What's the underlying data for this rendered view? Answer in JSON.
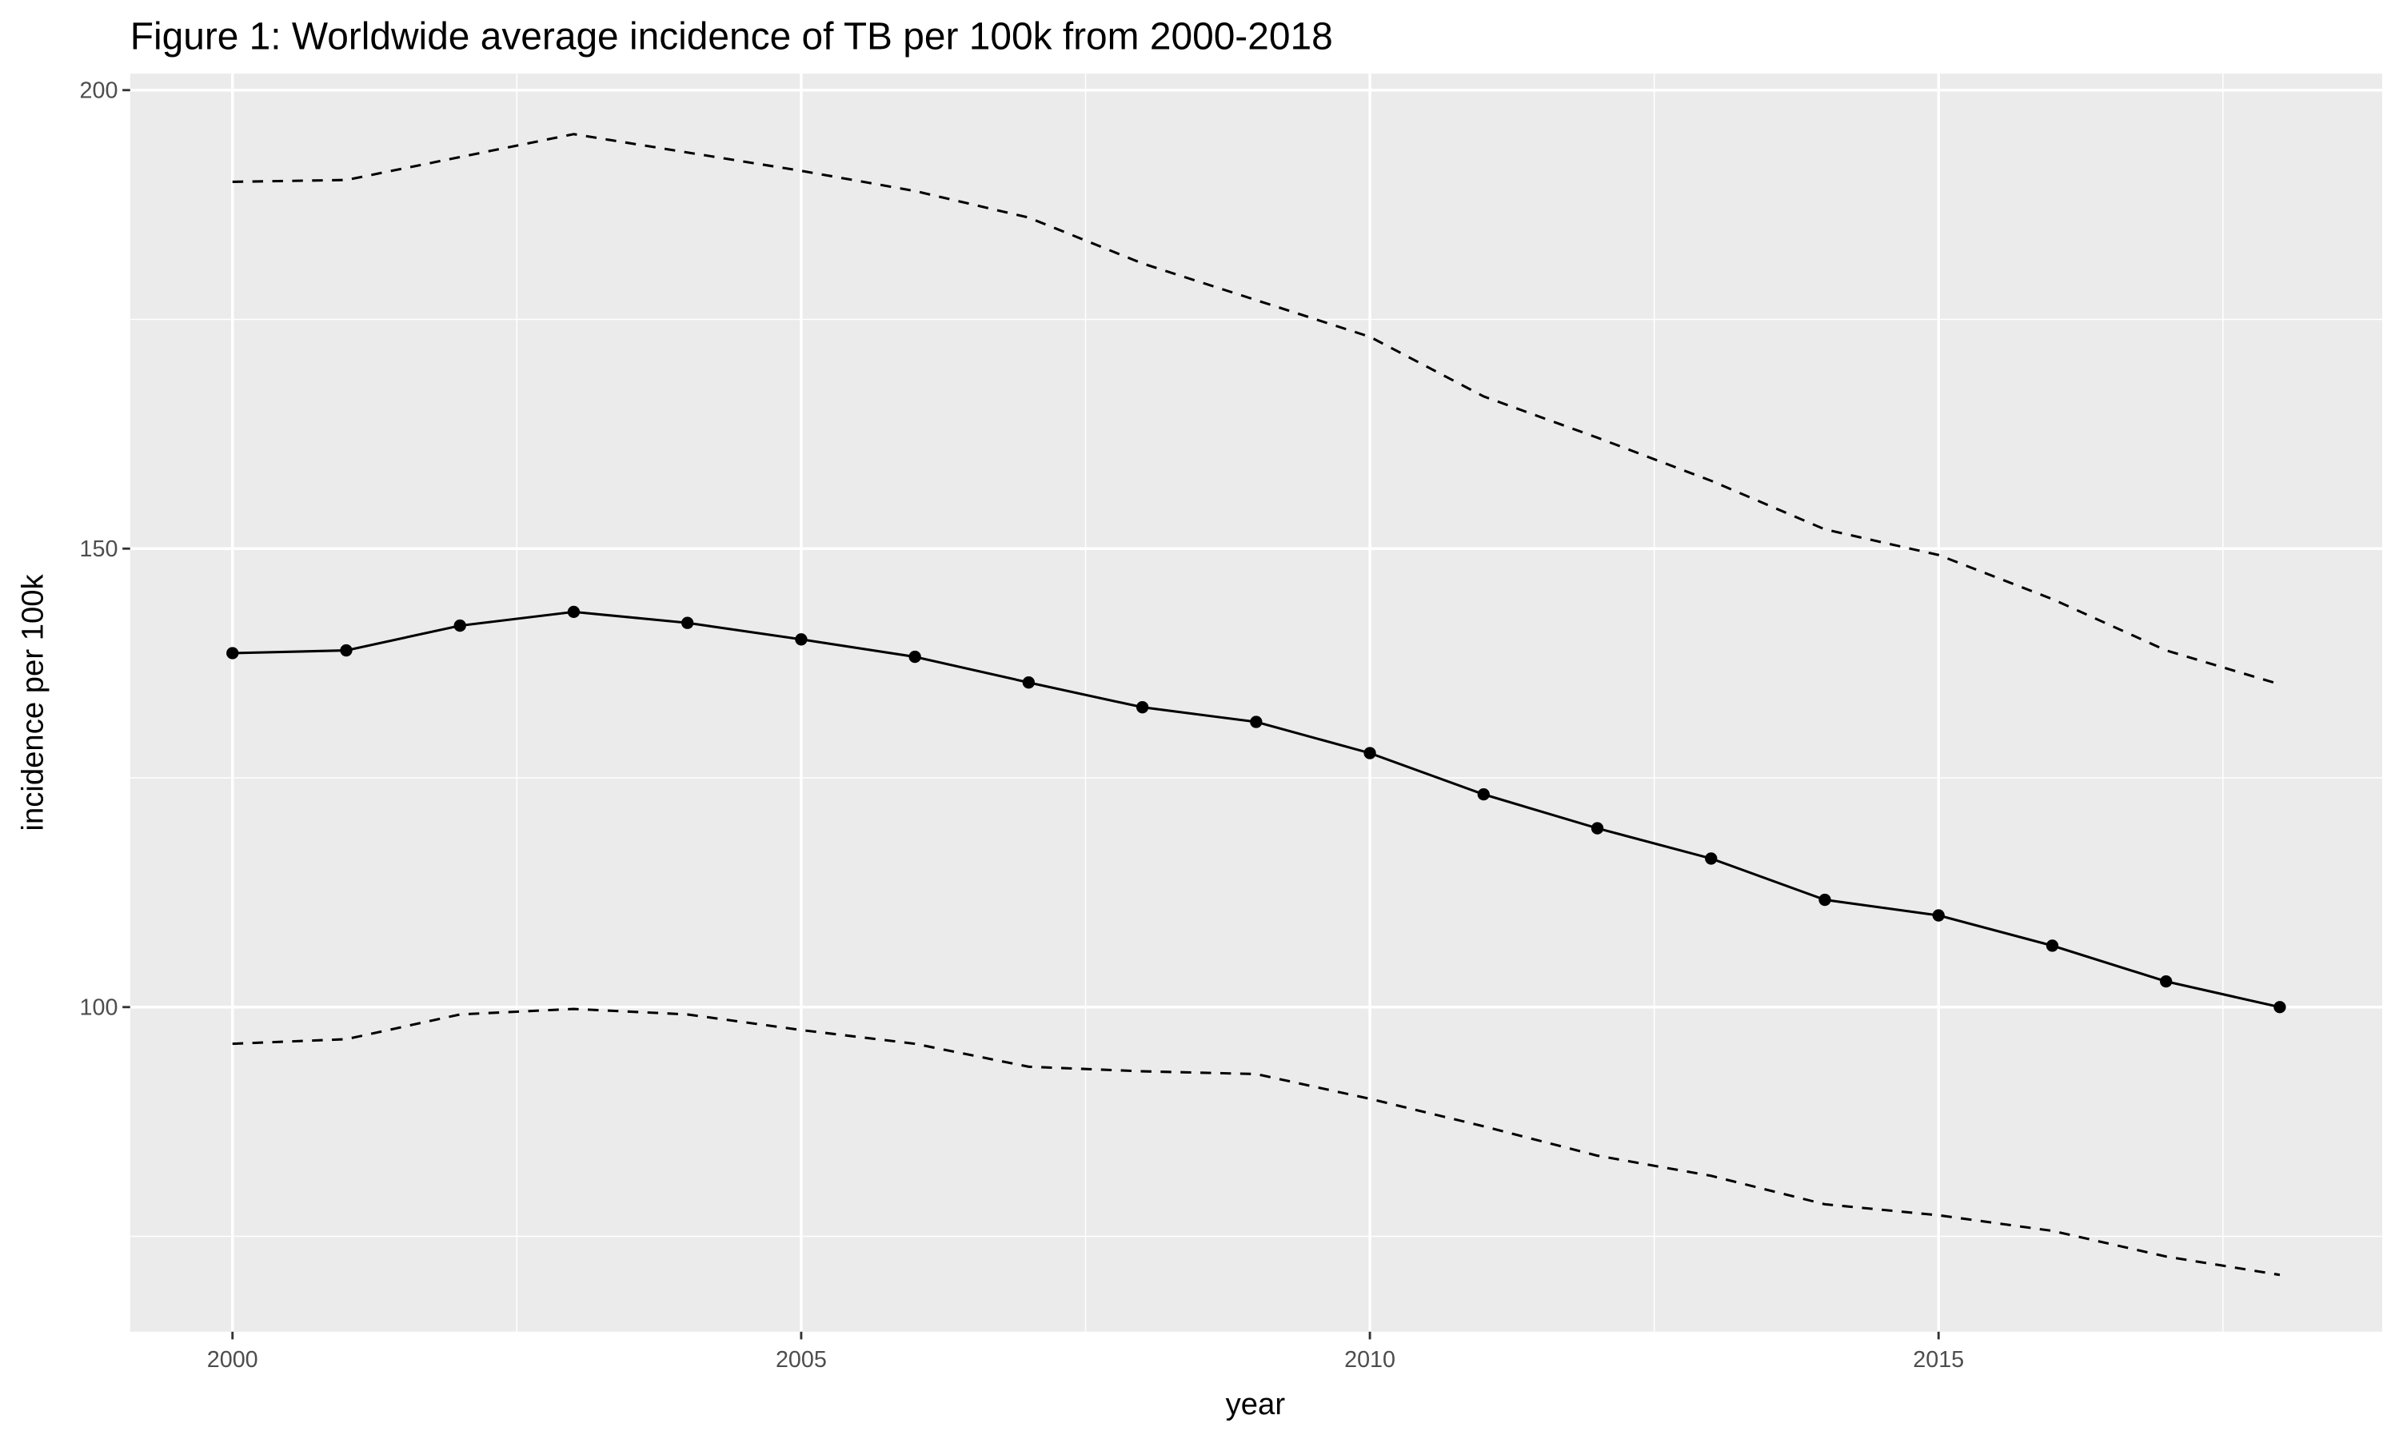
{
  "chart_data": {
    "type": "line",
    "title": "Figure 1: Worldwide average incidence of TB per 100k from 2000-2018",
    "x_label": "year",
    "y_label": "incidence per 100k",
    "x": [
      2000,
      2001,
      2002,
      2003,
      2004,
      2005,
      2006,
      2007,
      2008,
      2009,
      2010,
      2011,
      2012,
      2013,
      2014,
      2015,
      2016,
      2017,
      2018
    ],
    "series": [
      {
        "color": "#000000",
        "dashed": false,
        "points": true,
        "values": [
          138.6,
          138.9,
          141.6,
          143.1,
          141.9,
          140.1,
          138.2,
          135.4,
          132.7,
          131.1,
          127.7,
          123.2,
          119.5,
          116.2,
          111.7,
          110.0,
          106.7,
          102.8,
          100.0
        ]
      },
      {
        "color": "#000000",
        "dashed": true,
        "points": false,
        "values": [
          190.0,
          190.2,
          192.7,
          195.2,
          193.2,
          191.2,
          189.0,
          186.1,
          181.1,
          177.1,
          173.1,
          166.6,
          162.1,
          157.4,
          152.1,
          149.3,
          144.5,
          138.9,
          135.2
        ]
      },
      {
        "color": "#000000",
        "dashed": true,
        "points": false,
        "values": [
          96.0,
          96.5,
          99.2,
          99.8,
          99.2,
          97.5,
          96.0,
          93.5,
          93.0,
          92.7,
          90.0,
          87.0,
          83.8,
          81.6,
          78.5,
          77.3,
          75.6,
          72.8,
          70.8
        ]
      }
    ],
    "xlim": [
      1999.1,
      2018.9
    ],
    "ylim": [
      64.6,
      201.8
    ],
    "xticks": [
      2000,
      2005,
      2010,
      2015
    ],
    "yticks": [
      100,
      150,
      200
    ],
    "x_minor_grid": [
      2002.5,
      2007.5,
      2012.5,
      2017.5
    ],
    "y_minor_grid": [
      75,
      125,
      175
    ],
    "grid": true
  }
}
